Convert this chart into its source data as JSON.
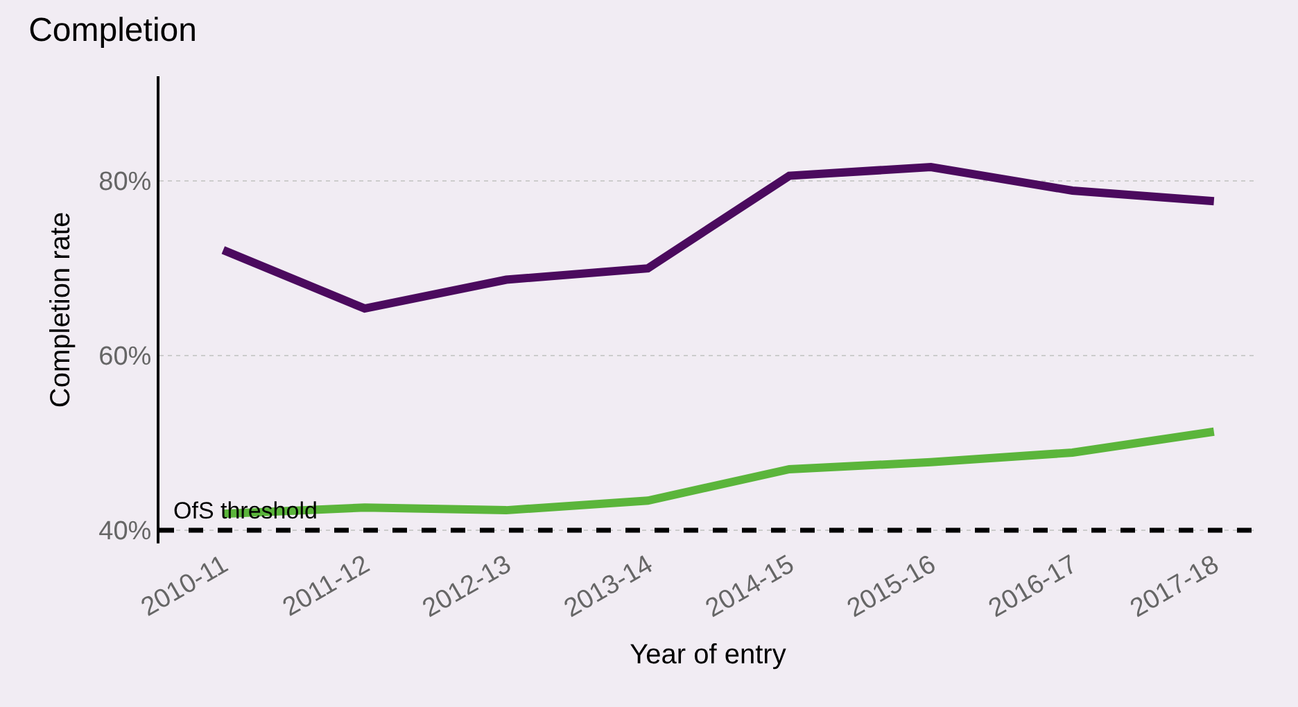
{
  "chart_data": {
    "type": "line",
    "title": "Completion",
    "xlabel": "Year of entry",
    "ylabel": "Completion rate",
    "categories": [
      "2010-11",
      "2011-12",
      "2012-13",
      "2013-14",
      "2014-15",
      "2015-16",
      "2016-17",
      "2017-18"
    ],
    "series": [
      {
        "color": "#4b0a5e",
        "values": [
          72.1,
          65.4,
          68.7,
          70.0,
          80.6,
          81.6,
          78.9,
          77.7
        ]
      },
      {
        "color": "#5bb53b",
        "values": [
          41.9,
          42.6,
          42.3,
          43.4,
          47.0,
          47.8,
          48.9,
          51.3
        ]
      }
    ],
    "ylim": [
      38.5,
      92
    ],
    "yticks": [
      {
        "value": 40,
        "label": "40%"
      },
      {
        "value": 60,
        "label": "60%"
      },
      {
        "value": 80,
        "label": "80%"
      }
    ],
    "grid": "y",
    "marker": "none",
    "line_style": "solid",
    "ref_lines": [
      {
        "axis": "y",
        "value": 40,
        "label": "OfS threshold",
        "color": "#000000",
        "line_style": "dashed"
      }
    ]
  }
}
